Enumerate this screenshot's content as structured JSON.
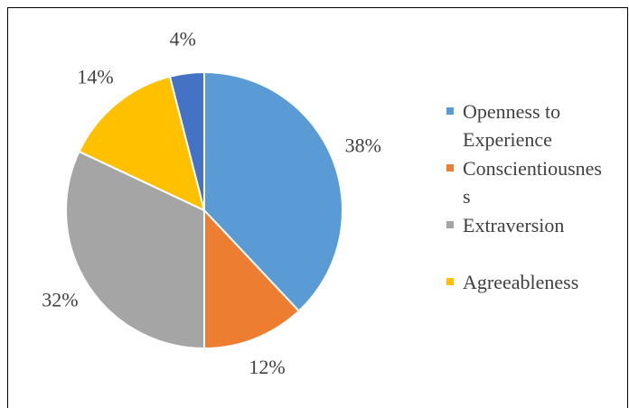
{
  "chart_data": {
    "type": "pie",
    "categories": [
      "Openness to Experience",
      "Conscientiousness",
      "Extraversion",
      "Agreeableness",
      null
    ],
    "values": [
      38,
      12,
      32,
      14,
      4
    ],
    "value_labels": [
      "38%",
      "12%",
      "32%",
      "14%",
      "4%"
    ],
    "colors": [
      "#5b9bd5",
      "#ed7d31",
      "#a5a5a5",
      "#ffc000",
      "#4472c4"
    ],
    "legend": "right"
  }
}
